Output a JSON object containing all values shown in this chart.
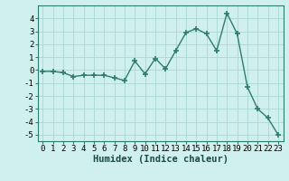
{
  "x": [
    0,
    1,
    2,
    3,
    4,
    5,
    6,
    7,
    8,
    9,
    10,
    11,
    12,
    13,
    14,
    15,
    16,
    17,
    18,
    19,
    20,
    21,
    22,
    23
  ],
  "y": [
    -0.1,
    -0.1,
    -0.2,
    -0.5,
    -0.4,
    -0.4,
    -0.4,
    -0.6,
    -0.8,
    0.7,
    -0.3,
    0.9,
    0.1,
    1.5,
    2.9,
    3.2,
    2.8,
    1.5,
    4.4,
    2.8,
    -1.3,
    -3.0,
    -3.7,
    -5.0
  ],
  "line_color": "#2e7c6e",
  "marker": "+",
  "marker_size": 4,
  "line_width": 1.0,
  "bg_color": "#cff0ec",
  "grid_color": "#a8d8d0",
  "xlabel": "Humidex (Indice chaleur)",
  "xlim": [
    -0.5,
    23.5
  ],
  "ylim": [
    -5.5,
    5.0
  ],
  "xticks": [
    0,
    1,
    2,
    3,
    4,
    5,
    6,
    7,
    8,
    9,
    10,
    11,
    12,
    13,
    14,
    15,
    16,
    17,
    18,
    19,
    20,
    21,
    22,
    23
  ],
  "yticks": [
    -5,
    -4,
    -3,
    -2,
    -1,
    0,
    1,
    2,
    3,
    4
  ],
  "tick_fontsize": 6.5,
  "xlabel_fontsize": 7.5
}
